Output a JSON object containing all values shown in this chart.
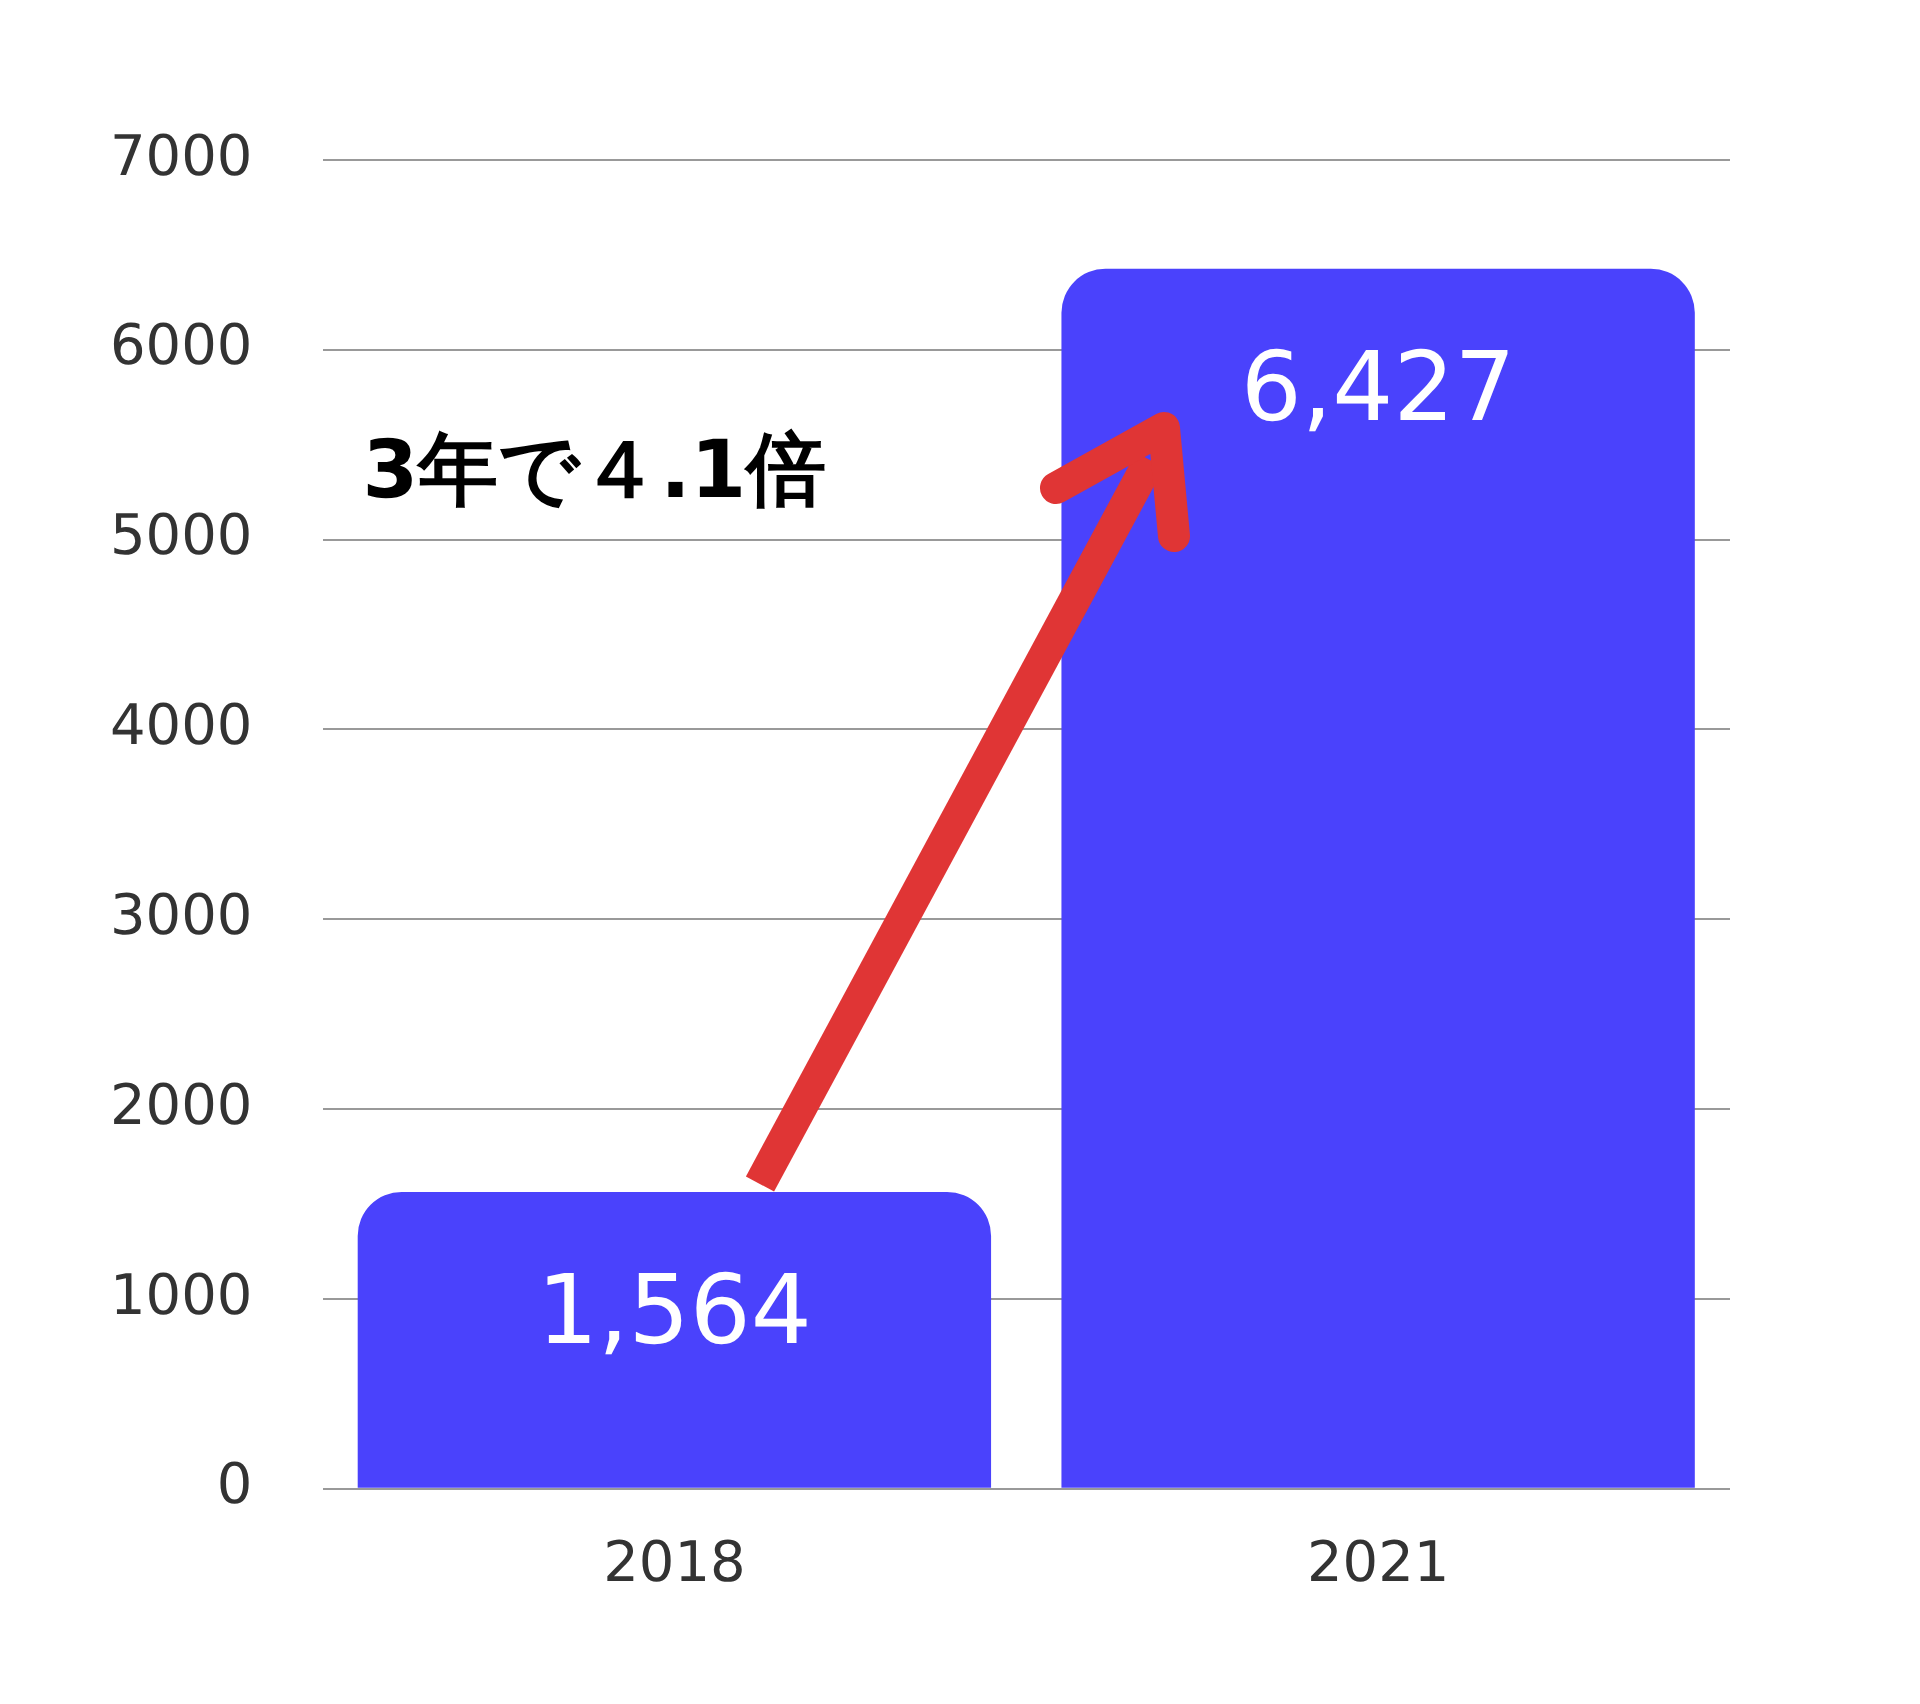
{
  "chart_data": {
    "type": "bar",
    "categories": [
      "2018",
      "2021"
    ],
    "values": [
      1564,
      6427
    ],
    "color": "#4a42fc",
    "value_labels": [
      "1,564",
      "6,427"
    ],
    "ylim": [
      0,
      7000
    ],
    "yticks": [
      0,
      1000,
      2000,
      3000,
      4000,
      5000,
      6000,
      7000
    ],
    "grid": "y",
    "annotations": [
      "3年で４.1倍"
    ]
  }
}
